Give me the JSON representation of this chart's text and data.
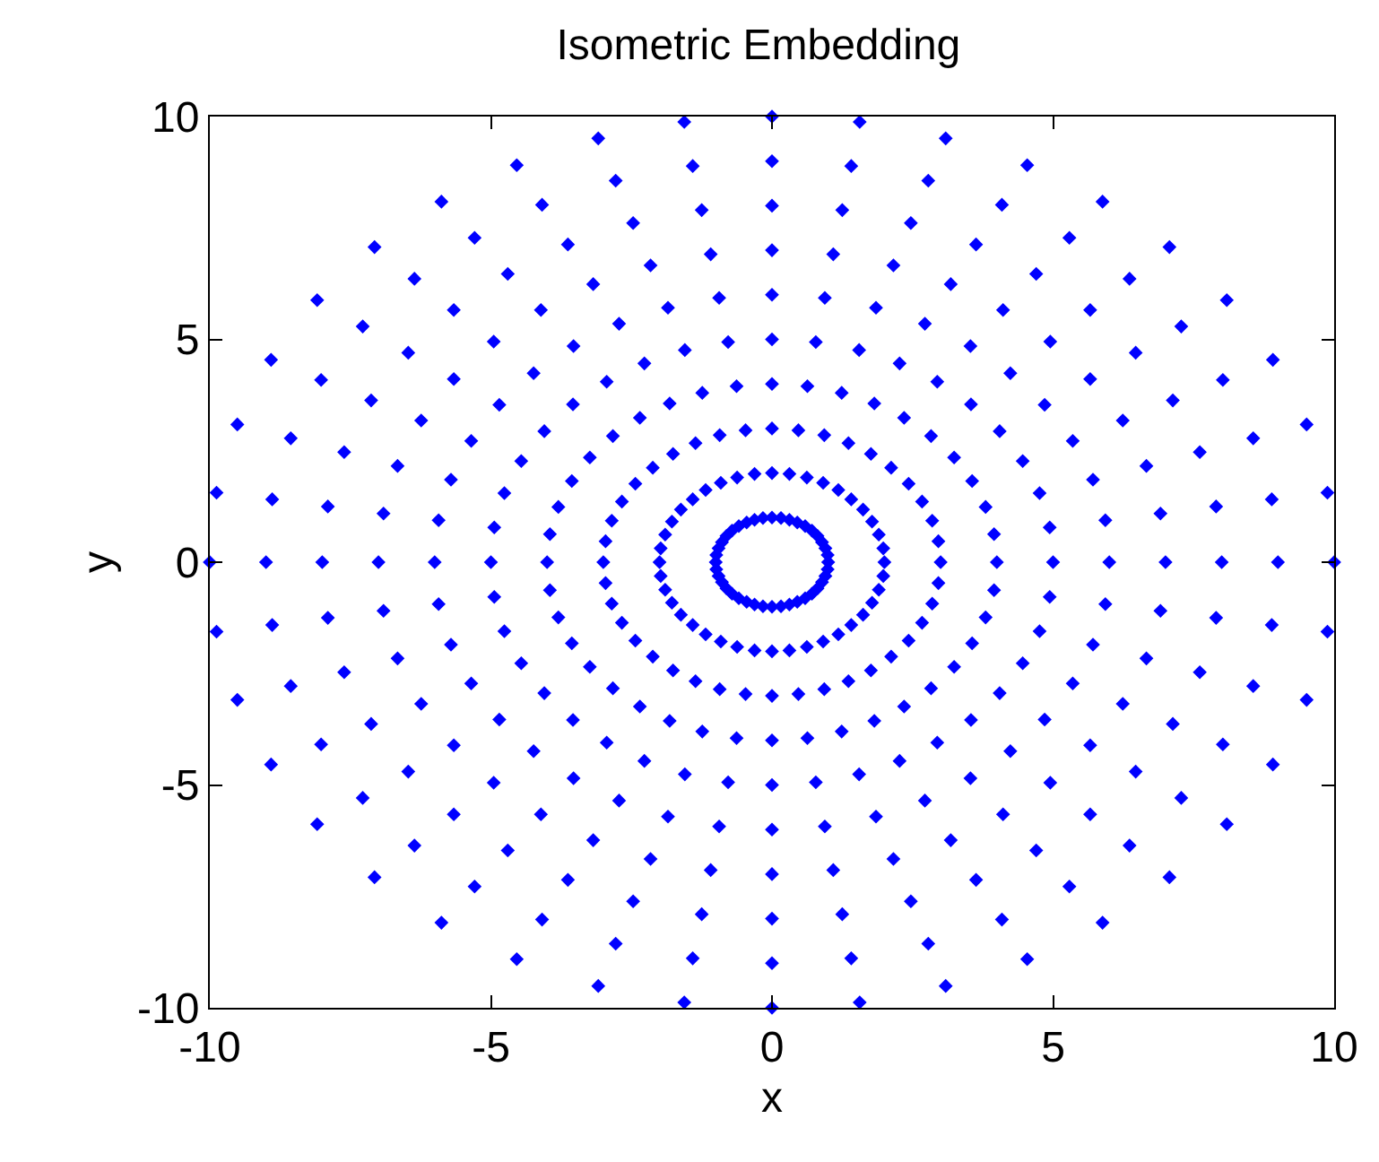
{
  "chart_data": {
    "type": "scatter",
    "title": "Isometric Embedding",
    "xlabel": "x",
    "ylabel": "y",
    "xlim": [
      -10,
      10
    ],
    "ylim": [
      -10,
      10
    ],
    "xticks": [
      -10,
      -5,
      0,
      5,
      10
    ],
    "yticks": [
      -10,
      -5,
      0,
      5,
      10
    ],
    "marker": "diamond",
    "series": [
      {
        "color": "#0000ff",
        "x": [
          1,
          0.99,
          0.95,
          0.89,
          0.81,
          0.71,
          0.59,
          0.45,
          0.31,
          0.16,
          0,
          -0.16,
          -0.31,
          -0.45,
          -0.59,
          -0.71,
          -0.81,
          -0.89,
          -0.95,
          -0.99,
          -1,
          -0.99,
          -0.95,
          -0.89,
          -0.81,
          -0.71,
          -0.59,
          -0.45,
          -0.31,
          -0.16,
          0,
          0.16,
          0.31,
          0.45,
          0.59,
          0.71,
          0.81,
          0.89,
          0.95,
          0.99
        ],
        "values": [
          0,
          0.16,
          0.31,
          0.45,
          0.59,
          0.71,
          0.81,
          0.89,
          0.95,
          0.99,
          1,
          0.99,
          0.95,
          0.89,
          0.81,
          0.71,
          0.59,
          0.45,
          0.31,
          0.16,
          0,
          -0.16,
          -0.31,
          -0.45,
          -0.59,
          -0.71,
          -0.81,
          -0.89,
          -0.95,
          -0.99,
          -1,
          -0.99,
          -0.95,
          -0.89,
          -0.81,
          -0.71,
          -0.59,
          -0.45,
          -0.31,
          -0.16
        ]
      },
      {
        "color": "#0000ff",
        "x": [
          2,
          1.98,
          1.9,
          1.78,
          1.62,
          1.41,
          1.18,
          0.91,
          0.62,
          0.31,
          0,
          -0.31,
          -0.62,
          -0.91,
          -1.18,
          -1.41,
          -1.62,
          -1.78,
          -1.9,
          -1.98,
          -2,
          -1.98,
          -1.9,
          -1.78,
          -1.62,
          -1.41,
          -1.18,
          -0.91,
          -0.62,
          -0.31,
          0,
          0.31,
          0.62,
          0.91,
          1.18,
          1.41,
          1.62,
          1.78,
          1.9,
          1.98
        ],
        "values": [
          0,
          0.31,
          0.62,
          0.91,
          1.18,
          1.41,
          1.62,
          1.78,
          1.9,
          1.98,
          2,
          1.98,
          1.9,
          1.78,
          1.62,
          1.41,
          1.18,
          0.91,
          0.62,
          0.31,
          0,
          -0.31,
          -0.62,
          -0.91,
          -1.18,
          -1.41,
          -1.62,
          -1.78,
          -1.9,
          -1.98,
          -2,
          -1.98,
          -1.9,
          -1.78,
          -1.62,
          -1.41,
          -1.18,
          -0.91,
          -0.62,
          -0.31
        ]
      },
      {
        "color": "#0000ff",
        "x": [
          3,
          2.96,
          2.85,
          2.67,
          2.43,
          2.12,
          1.76,
          1.36,
          0.93,
          0.47,
          0,
          -0.47,
          -0.93,
          -1.36,
          -1.76,
          -2.12,
          -2.43,
          -2.67,
          -2.85,
          -2.96,
          -3,
          -2.96,
          -2.85,
          -2.67,
          -2.43,
          -2.12,
          -1.76,
          -1.36,
          -0.93,
          -0.47,
          0,
          0.47,
          0.93,
          1.36,
          1.76,
          2.12,
          2.43,
          2.67,
          2.85,
          2.96
        ],
        "values": [
          0,
          0.47,
          0.93,
          1.36,
          1.76,
          2.12,
          2.43,
          2.67,
          2.85,
          2.96,
          3,
          2.96,
          2.85,
          2.67,
          2.43,
          2.12,
          1.76,
          1.36,
          0.93,
          0.47,
          0,
          -0.47,
          -0.93,
          -1.36,
          -1.76,
          -2.12,
          -2.43,
          -2.67,
          -2.85,
          -2.96,
          -3,
          -2.96,
          -2.85,
          -2.67,
          -2.43,
          -2.12,
          -1.76,
          -1.36,
          -0.93,
          -0.47
        ]
      },
      {
        "color": "#0000ff",
        "x": [
          4,
          3.95,
          3.8,
          3.56,
          3.24,
          2.83,
          2.35,
          1.82,
          1.24,
          0.63,
          0,
          -0.63,
          -1.24,
          -1.82,
          -2.35,
          -2.83,
          -3.24,
          -3.56,
          -3.8,
          -3.95,
          -4,
          -3.95,
          -3.8,
          -3.56,
          -3.24,
          -2.83,
          -2.35,
          -1.82,
          -1.24,
          -0.63,
          0,
          0.63,
          1.24,
          1.82,
          2.35,
          2.83,
          3.24,
          3.56,
          3.8,
          3.95
        ],
        "values": [
          0,
          0.63,
          1.24,
          1.82,
          2.35,
          2.83,
          3.24,
          3.56,
          3.8,
          3.95,
          4,
          3.95,
          3.8,
          3.56,
          3.24,
          2.83,
          2.35,
          1.82,
          1.24,
          0.63,
          0,
          -0.63,
          -1.24,
          -1.82,
          -2.35,
          -2.83,
          -3.24,
          -3.56,
          -3.8,
          -3.95,
          -4,
          -3.95,
          -3.8,
          -3.56,
          -3.24,
          -2.83,
          -2.35,
          -1.82,
          -1.24,
          -0.63
        ]
      },
      {
        "color": "#0000ff",
        "x": [
          5,
          4.94,
          4.76,
          4.46,
          4.05,
          3.54,
          2.94,
          2.27,
          1.55,
          0.78,
          0,
          -0.78,
          -1.55,
          -2.27,
          -2.94,
          -3.54,
          -4.05,
          -4.46,
          -4.76,
          -4.94,
          -5,
          -4.94,
          -4.76,
          -4.46,
          -4.05,
          -3.54,
          -2.94,
          -2.27,
          -1.55,
          -0.78,
          0,
          0.78,
          1.55,
          2.27,
          2.94,
          3.54,
          4.05,
          4.46,
          4.76,
          4.94
        ],
        "values": [
          0,
          0.78,
          1.55,
          2.27,
          2.94,
          3.54,
          4.05,
          4.46,
          4.76,
          4.94,
          5,
          4.94,
          4.76,
          4.46,
          4.05,
          3.54,
          2.94,
          2.27,
          1.55,
          0.78,
          0,
          -0.78,
          -1.55,
          -2.27,
          -2.94,
          -3.54,
          -4.05,
          -4.46,
          -4.76,
          -4.94,
          -5,
          -4.94,
          -4.76,
          -4.46,
          -4.05,
          -3.54,
          -2.94,
          -2.27,
          -1.55,
          -0.78
        ]
      },
      {
        "color": "#0000ff",
        "x": [
          6,
          5.93,
          5.71,
          5.35,
          4.85,
          4.24,
          3.53,
          2.72,
          1.85,
          0.94,
          0,
          -0.94,
          -1.85,
          -2.72,
          -3.53,
          -4.24,
          -4.85,
          -5.35,
          -5.71,
          -5.93,
          -6,
          -5.93,
          -5.71,
          -5.35,
          -4.85,
          -4.24,
          -3.53,
          -2.72,
          -1.85,
          -0.94,
          0,
          0.94,
          1.85,
          2.72,
          3.53,
          4.24,
          4.85,
          5.35,
          5.71,
          5.93
        ],
        "values": [
          0,
          0.94,
          1.85,
          2.72,
          3.53,
          4.24,
          4.85,
          5.35,
          5.71,
          5.93,
          6,
          5.93,
          5.71,
          5.35,
          4.85,
          4.24,
          3.53,
          2.72,
          1.85,
          0.94,
          0,
          -0.94,
          -1.85,
          -2.72,
          -3.53,
          -4.24,
          -4.85,
          -5.35,
          -5.71,
          -5.93,
          -6,
          -5.93,
          -5.71,
          -5.35,
          -4.85,
          -4.24,
          -3.53,
          -2.72,
          -1.85,
          -0.94
        ]
      },
      {
        "color": "#0000ff",
        "x": [
          7,
          6.91,
          6.66,
          6.24,
          5.66,
          4.95,
          4.11,
          3.18,
          2.16,
          1.09,
          0,
          -1.09,
          -2.16,
          -3.18,
          -4.11,
          -4.95,
          -5.66,
          -6.24,
          -6.66,
          -6.91,
          -7,
          -6.91,
          -6.66,
          -6.24,
          -5.66,
          -4.95,
          -4.11,
          -3.18,
          -2.16,
          -1.09,
          0,
          1.09,
          2.16,
          3.18,
          4.11,
          4.95,
          5.66,
          6.24,
          6.66,
          6.91
        ],
        "values": [
          0,
          1.09,
          2.16,
          3.18,
          4.11,
          4.95,
          5.66,
          6.24,
          6.66,
          6.91,
          7,
          6.91,
          6.66,
          6.24,
          5.66,
          4.95,
          4.11,
          3.18,
          2.16,
          1.09,
          0,
          -1.09,
          -2.16,
          -3.18,
          -4.11,
          -4.95,
          -5.66,
          -6.24,
          -6.66,
          -6.91,
          -7,
          -6.91,
          -6.66,
          -6.24,
          -5.66,
          -4.95,
          -4.11,
          -3.18,
          -2.16,
          -1.09
        ]
      },
      {
        "color": "#0000ff",
        "x": [
          8,
          7.9,
          7.61,
          7.13,
          6.47,
          5.66,
          4.7,
          3.63,
          2.47,
          1.25,
          0,
          -1.25,
          -2.47,
          -3.63,
          -4.7,
          -5.66,
          -6.47,
          -7.13,
          -7.61,
          -7.9,
          -8,
          -7.9,
          -7.61,
          -7.13,
          -6.47,
          -5.66,
          -4.7,
          -3.63,
          -2.47,
          -1.25,
          0,
          1.25,
          2.47,
          3.63,
          4.7,
          5.66,
          6.47,
          7.13,
          7.61,
          7.9
        ],
        "values": [
          0,
          1.25,
          2.47,
          3.63,
          4.7,
          5.66,
          6.47,
          7.13,
          7.61,
          7.9,
          8,
          7.9,
          7.61,
          7.13,
          6.47,
          5.66,
          4.7,
          3.63,
          2.47,
          1.25,
          0,
          -1.25,
          -2.47,
          -3.63,
          -4.7,
          -5.66,
          -6.47,
          -7.13,
          -7.61,
          -7.9,
          -8,
          -7.9,
          -7.61,
          -7.13,
          -6.47,
          -5.66,
          -4.7,
          -3.63,
          -2.47,
          -1.25
        ]
      },
      {
        "color": "#0000ff",
        "x": [
          9,
          8.89,
          8.56,
          8.02,
          7.28,
          6.36,
          5.29,
          4.09,
          2.78,
          1.41,
          0,
          -1.41,
          -2.78,
          -4.09,
          -5.29,
          -6.36,
          -7.28,
          -8.02,
          -8.56,
          -8.89,
          -9,
          -8.89,
          -8.56,
          -8.02,
          -7.28,
          -6.36,
          -5.29,
          -4.09,
          -2.78,
          -1.41,
          0,
          1.41,
          2.78,
          4.09,
          5.29,
          6.36,
          7.28,
          8.02,
          8.56,
          8.89
        ],
        "values": [
          0,
          1.41,
          2.78,
          4.09,
          5.29,
          6.36,
          7.28,
          8.02,
          8.56,
          8.89,
          9,
          8.89,
          8.56,
          8.02,
          7.28,
          6.36,
          5.29,
          4.09,
          2.78,
          1.41,
          0,
          -1.41,
          -2.78,
          -4.09,
          -5.29,
          -6.36,
          -7.28,
          -8.02,
          -8.56,
          -8.89,
          -9,
          -8.89,
          -8.56,
          -8.02,
          -7.28,
          -6.36,
          -5.29,
          -4.09,
          -2.78,
          -1.41
        ]
      },
      {
        "color": "#0000ff",
        "x": [
          10,
          9.88,
          9.51,
          8.91,
          8.09,
          7.07,
          5.88,
          4.54,
          3.09,
          1.56,
          0,
          -1.56,
          -3.09,
          -4.54,
          -5.88,
          -7.07,
          -8.09,
          -8.91,
          -9.51,
          -9.88,
          -10,
          -9.88,
          -9.51,
          -8.91,
          -8.09,
          -7.07,
          -5.88,
          -4.54,
          -3.09,
          -1.56,
          0,
          1.56,
          3.09,
          4.54,
          5.88,
          7.07,
          8.09,
          8.91,
          9.51,
          9.88
        ],
        "values": [
          0,
          1.56,
          3.09,
          4.54,
          5.88,
          7.07,
          8.09,
          8.91,
          9.51,
          9.88,
          10,
          9.88,
          9.51,
          8.91,
          8.09,
          7.07,
          5.88,
          4.54,
          3.09,
          1.56,
          0,
          -1.56,
          -3.09,
          -4.54,
          -5.88,
          -7.07,
          -8.09,
          -8.91,
          -9.51,
          -9.88,
          -10,
          -9.88,
          -9.51,
          -8.91,
          -8.09,
          -7.07,
          -5.88,
          -4.54,
          -3.09,
          -1.56
        ]
      }
    ]
  }
}
